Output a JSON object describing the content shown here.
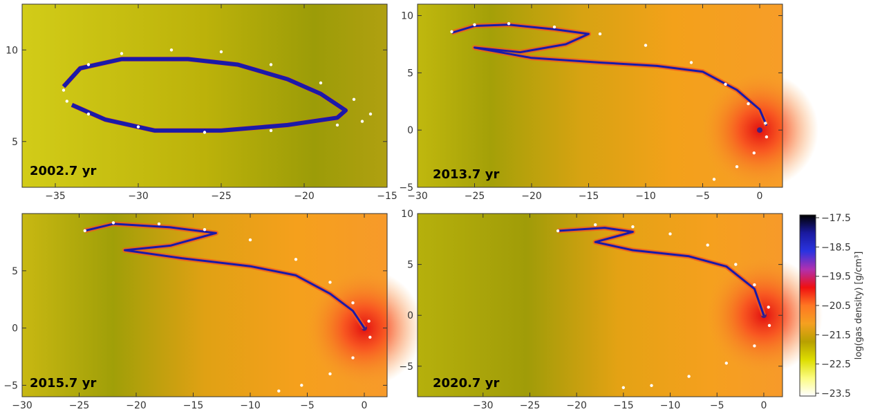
{
  "chart_data": [
    {
      "type": "heatmap",
      "title": "2002.7 yr",
      "xlim": [
        -37,
        -15
      ],
      "ylim": [
        2.5,
        12.5
      ],
      "xticks": [
        -35,
        -30,
        -25,
        -20,
        -15
      ],
      "yticks": [
        5,
        10
      ],
      "orbit_dots": [
        [
          -34.5,
          7.8
        ],
        [
          -33,
          9.2
        ],
        [
          -31,
          9.8
        ],
        [
          -28,
          10.0
        ],
        [
          -25,
          9.9
        ],
        [
          -22,
          9.2
        ],
        [
          -19,
          8.2
        ],
        [
          -17,
          7.3
        ],
        [
          -16,
          6.5
        ],
        [
          -16.5,
          6.1
        ],
        [
          -18,
          5.9
        ],
        [
          -22,
          5.6
        ],
        [
          -26,
          5.5
        ],
        [
          -30,
          5.8
        ],
        [
          -33,
          6.5
        ],
        [
          -34.3,
          7.2
        ]
      ],
      "cloud": [
        [
          -34.5,
          8.0
        ],
        [
          -33.5,
          9.0
        ],
        [
          -31,
          9.5
        ],
        [
          -27,
          9.5
        ],
        [
          -24,
          9.2
        ],
        [
          -21,
          8.4
        ],
        [
          -19,
          7.6
        ],
        [
          -17.5,
          6.7
        ],
        [
          -18,
          6.3
        ],
        [
          -21,
          5.9
        ],
        [
          -25,
          5.6
        ],
        [
          -29,
          5.6
        ],
        [
          -32,
          6.2
        ],
        [
          -34,
          7.0
        ]
      ]
    },
    {
      "type": "heatmap",
      "title": "2013.7 yr",
      "xlim": [
        -30,
        2
      ],
      "ylim": [
        -5,
        11
      ],
      "xticks": [
        -30,
        -25,
        -20,
        -15,
        -10,
        -5,
        0
      ],
      "yticks": [
        -5,
        0,
        5,
        10
      ],
      "orbit_dots": [
        [
          -27,
          8.6
        ],
        [
          -25,
          9.2
        ],
        [
          -22,
          9.3
        ],
        [
          -18,
          9.0
        ],
        [
          -14,
          8.4
        ],
        [
          -10,
          7.4
        ],
        [
          -6,
          5.9
        ],
        [
          -3,
          4.0
        ],
        [
          -1,
          2.3
        ],
        [
          0.5,
          0.6
        ],
        [
          0.6,
          -0.6
        ],
        [
          -0.5,
          -2.0
        ],
        [
          -2,
          -3.2
        ],
        [
          -4,
          -4.3
        ]
      ],
      "cloud": [
        [
          -27,
          8.5
        ],
        [
          -25,
          9.1
        ],
        [
          -22,
          9.2
        ],
        [
          -18,
          8.8
        ],
        [
          -15,
          8.4
        ],
        [
          -17,
          7.5
        ],
        [
          -21,
          6.8
        ],
        [
          -25,
          7.2
        ],
        [
          -20,
          6.3
        ],
        [
          -14,
          5.9
        ],
        [
          -9,
          5.6
        ],
        [
          -5,
          5.1
        ],
        [
          -2,
          3.5
        ],
        [
          0,
          1.8
        ],
        [
          0.6,
          0.4
        ]
      ]
    },
    {
      "type": "heatmap",
      "title": "2015.7 yr",
      "xlim": [
        -30,
        2
      ],
      "ylim": [
        -6,
        10
      ],
      "xticks": [
        -30,
        -25,
        -20,
        -15,
        -10,
        -5,
        0
      ],
      "yticks": [
        -5,
        0,
        5
      ],
      "orbit_dots": [
        [
          -24.5,
          8.5
        ],
        [
          -22,
          9.2
        ],
        [
          -18,
          9.1
        ],
        [
          -14,
          8.6
        ],
        [
          -10,
          7.7
        ],
        [
          -6,
          6.0
        ],
        [
          -3,
          4.0
        ],
        [
          -1,
          2.2
        ],
        [
          0.4,
          0.6
        ],
        [
          0.5,
          -0.8
        ],
        [
          -1,
          -2.6
        ],
        [
          -3,
          -4.0
        ],
        [
          -5.5,
          -5.0
        ],
        [
          -7.5,
          -5.5
        ]
      ],
      "cloud": [
        [
          -24.5,
          8.5
        ],
        [
          -22,
          9.1
        ],
        [
          -17,
          8.8
        ],
        [
          -13,
          8.3
        ],
        [
          -17,
          7.2
        ],
        [
          -21,
          6.8
        ],
        [
          -16,
          6.1
        ],
        [
          -10,
          5.4
        ],
        [
          -6,
          4.6
        ],
        [
          -3,
          3.0
        ],
        [
          -1,
          1.5
        ],
        [
          0,
          0
        ]
      ]
    },
    {
      "type": "heatmap",
      "title": "2020.7 yr",
      "xlim": [
        -37,
        2
      ],
      "ylim": [
        -8,
        10
      ],
      "xticks": [
        -30,
        -25,
        -20,
        -15,
        -10,
        -5,
        0
      ],
      "yticks": [
        -5,
        0,
        5,
        10
      ],
      "orbit_dots": [
        [
          -22,
          8.3
        ],
        [
          -18,
          8.9
        ],
        [
          -14,
          8.7
        ],
        [
          -10,
          8.0
        ],
        [
          -6,
          6.9
        ],
        [
          -3,
          5.0
        ],
        [
          -1,
          3.0
        ],
        [
          0.5,
          0.8
        ],
        [
          0.6,
          -1.0
        ],
        [
          -1,
          -3.0
        ],
        [
          -4,
          -4.7
        ],
        [
          -8,
          -6.0
        ],
        [
          -12,
          -6.9
        ],
        [
          -15,
          -7.1
        ]
      ],
      "cloud": [
        [
          -22,
          8.3
        ],
        [
          -17,
          8.6
        ],
        [
          -14,
          8.2
        ],
        [
          -18,
          7.2
        ],
        [
          -14,
          6.4
        ],
        [
          -8,
          5.8
        ],
        [
          -4,
          4.8
        ],
        [
          -1,
          2.6
        ],
        [
          0,
          0
        ]
      ]
    }
  ],
  "colorbar": {
    "label": "log(gas density) [g/cm³]",
    "ticks": [
      "-17.5",
      "-18.5",
      "-19.5",
      "-20.5",
      "-21.5",
      "-22.5",
      "-23.5"
    ],
    "stops": [
      "#000000",
      "#1a1aa0",
      "#2a33e0",
      "#b030b0",
      "#f01010",
      "#ff7722",
      "#f5a020",
      "#b8a000",
      "#dddd00",
      "#fbfb80",
      "#ffffff"
    ]
  },
  "colors": {
    "dots": "#ffffff",
    "cloud_edge": "#1a1aa8",
    "cloud_fill": "#3030e0",
    "background": "#ffffff"
  }
}
